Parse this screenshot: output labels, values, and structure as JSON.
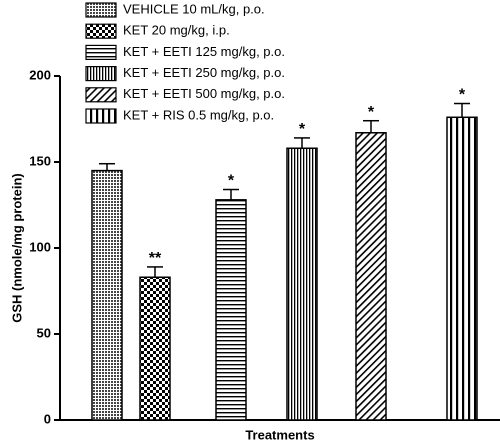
{
  "chart_data": {
    "type": "bar",
    "categories": [
      "VEHICLE 10 mL/kg, p.o.",
      "KET 20 mg/kg, i.p.",
      "KET + EETI 125 mg/kg, p.o.",
      "KET + EETI 250 mg/kg, p.o.",
      "KET + EETI 500 mg/kg, p.o.",
      "KET + RIS 0.5 mg/kg, p.o."
    ],
    "values": [
      145,
      83,
      128,
      158,
      167,
      176
    ],
    "errors": [
      4,
      6,
      6,
      6,
      7,
      8
    ],
    "annotations": [
      null,
      "**",
      "*",
      "*",
      "*",
      "*"
    ],
    "color": "#000000",
    "y_label": "GSH (nmole/mg protein)",
    "x_label": "Treatments",
    "ylim": [
      0,
      200
    ],
    "yticks": [
      0,
      50,
      100,
      150,
      200
    ]
  }
}
